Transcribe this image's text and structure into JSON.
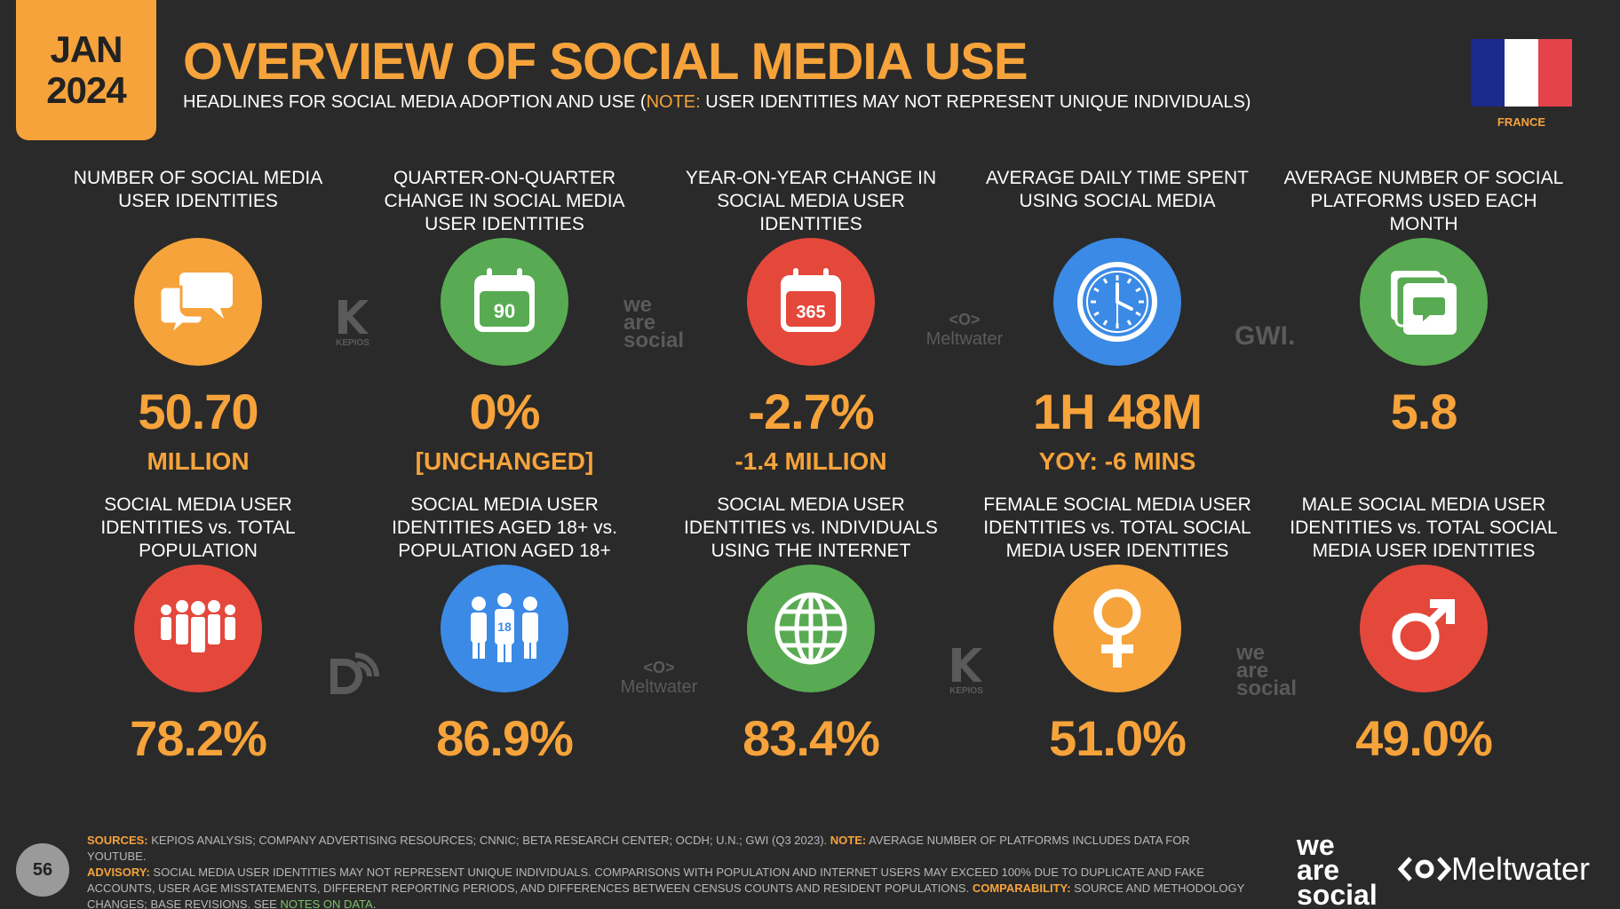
{
  "badge": {
    "month": "JAN",
    "year": "2024"
  },
  "header": {
    "title": "OVERVIEW OF SOCIAL MEDIA USE",
    "subtitle_pre": "HEADLINES FOR SOCIAL MEDIA ADOPTION AND USE (",
    "subtitle_note": "NOTE:",
    "subtitle_post": " USER IDENTITIES MAY NOT REPRESENT UNIQUE INDIVIDUALS)"
  },
  "country": {
    "label": "FRANCE",
    "flag_colors": [
      "#1a2a8c",
      "#ffffff",
      "#e5434a"
    ]
  },
  "colors": {
    "accent": "#f6a33b",
    "orange": "#f6a33b",
    "green": "#58ab52",
    "red": "#e4483b",
    "blue": "#3b8ae6",
    "background": "#2a2a2a"
  },
  "row1": [
    {
      "label": "NUMBER OF SOCIAL MEDIA USER IDENTITIES",
      "value": "50.70",
      "sub": "MILLION",
      "icon": "chat-bubbles-icon"
    },
    {
      "label": "QUARTER-ON-QUARTER CHANGE IN SOCIAL MEDIA USER IDENTITIES",
      "value": "0%",
      "sub": "[UNCHANGED]",
      "icon": "calendar-90-icon",
      "icon_text": "90"
    },
    {
      "label": "YEAR-ON-YEAR CHANGE IN SOCIAL MEDIA USER IDENTITIES",
      "value": "-2.7%",
      "sub": "-1.4 MILLION",
      "icon": "calendar-365-icon",
      "icon_text": "365"
    },
    {
      "label": "AVERAGE DAILY TIME SPENT USING SOCIAL MEDIA",
      "value": "1H 48M",
      "sub": "YOY: -6 MINS",
      "icon": "clock-icon"
    },
    {
      "label": "AVERAGE NUMBER OF SOCIAL PLATFORMS USED EACH MONTH",
      "value": "5.8",
      "sub": "",
      "icon": "stacked-chat-icon"
    }
  ],
  "row2": [
    {
      "label": "SOCIAL MEDIA USER IDENTITIES vs. TOTAL POPULATION",
      "value": "78.2%",
      "icon": "crowd-icon"
    },
    {
      "label": "SOCIAL MEDIA USER IDENTITIES AGED 18+ vs. POPULATION AGED 18+",
      "value": "86.9%",
      "icon": "adults-18-icon",
      "icon_text": "18"
    },
    {
      "label": "SOCIAL MEDIA USER IDENTITIES vs. INDIVIDUALS USING THE INTERNET",
      "value": "83.4%",
      "icon": "globe-icon"
    },
    {
      "label": "FEMALE SOCIAL MEDIA USER IDENTITIES vs. TOTAL SOCIAL MEDIA USER IDENTITIES",
      "value": "51.0%",
      "icon": "female-icon"
    },
    {
      "label": "MALE SOCIAL MEDIA USER IDENTITIES vs. TOTAL SOCIAL MEDIA USER IDENTITIES",
      "value": "49.0%",
      "icon": "male-icon"
    }
  ],
  "source_logos": {
    "kepios": "KEPIOS",
    "was": [
      "we",
      "are",
      "social"
    ],
    "meltwater": "Meltwater",
    "gwi": "GWI."
  },
  "footer": {
    "sources_label": "SOURCES:",
    "sources_text": " KEPIOS ANALYSIS; COMPANY ADVERTISING RESOURCES; CNNIC; BETA RESEARCH CENTER; OCDH; U.N.; GWI (Q3 2023). ",
    "note_label": "NOTE:",
    "note_text": " AVERAGE NUMBER OF PLATFORMS INCLUDES DATA FOR YOUTUBE.",
    "advisory_label": "ADVISORY:",
    "advisory_text": " SOCIAL MEDIA USER IDENTITIES MAY NOT REPRESENT UNIQUE INDIVIDUALS. COMPARISONS WITH POPULATION AND INTERNET USERS MAY EXCEED 100% DUE TO DUPLICATE AND FAKE ACCOUNTS, USER AGE MISSTATEMENTS, DIFFERENT REPORTING PERIODS, AND DIFFERENCES BETWEEN CENSUS COUNTS AND RESIDENT POPULATIONS. ",
    "comparability_label": "COMPARABILITY:",
    "comparability_text": " SOURCE AND METHODOLOGY CHANGES; BASE REVISIONS. SEE ",
    "notes_link": "NOTES ON DATA",
    "end": "."
  },
  "page_number": "56",
  "brands": {
    "was": [
      "we",
      "are",
      "social"
    ],
    "meltwater": "Meltwater"
  }
}
